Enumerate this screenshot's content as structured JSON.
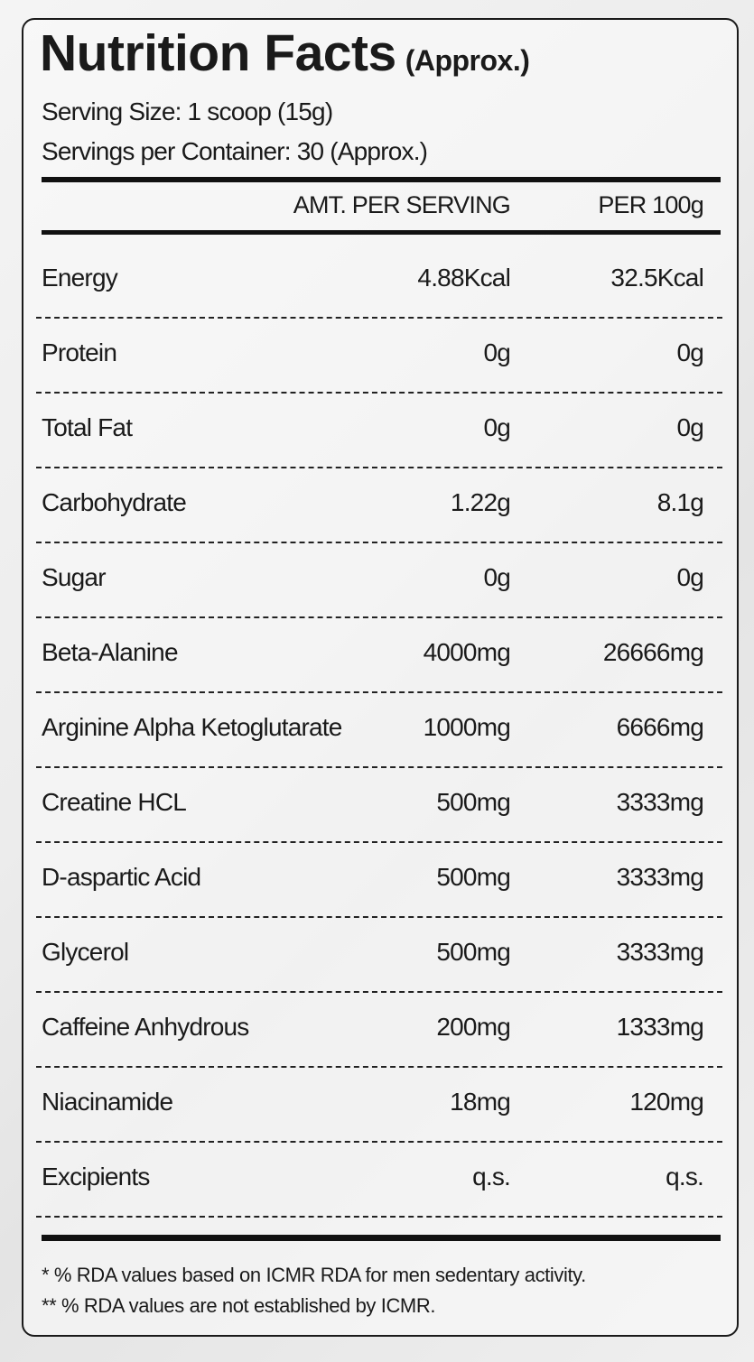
{
  "title": "Nutrition Facts",
  "title_suffix": "(Approx.)",
  "serving_size": "Serving Size: 1 scoop (15g)",
  "servings_per_container": "Servings per Container: 30 (Approx.)",
  "columns": {
    "per_serving": "AMT. PER SERVING",
    "per_100g": "PER 100g"
  },
  "rows": [
    {
      "name": "Energy",
      "per_serving": "4.88Kcal",
      "per_100g": "32.5Kcal"
    },
    {
      "name": "Protein",
      "per_serving": "0g",
      "per_100g": "0g"
    },
    {
      "name": "Total Fat",
      "per_serving": "0g",
      "per_100g": "0g"
    },
    {
      "name": "Carbohydrate",
      "per_serving": "1.22g",
      "per_100g": "8.1g"
    },
    {
      "name": "Sugar",
      "per_serving": "0g",
      "per_100g": "0g"
    },
    {
      "name": "Beta-Alanine",
      "per_serving": "4000mg",
      "per_100g": "26666mg"
    },
    {
      "name": "Arginine Alpha Ketoglutarate",
      "per_serving": "1000mg",
      "per_100g": "6666mg"
    },
    {
      "name": "Creatine HCL",
      "per_serving": "500mg",
      "per_100g": "3333mg"
    },
    {
      "name": "D-aspartic Acid",
      "per_serving": "500mg",
      "per_100g": "3333mg"
    },
    {
      "name": "Glycerol",
      "per_serving": "500mg",
      "per_100g": "3333mg"
    },
    {
      "name": "Caffeine Anhydrous",
      "per_serving": "200mg",
      "per_100g": "1333mg"
    },
    {
      "name": "Niacinamide",
      "per_serving": "18mg",
      "per_100g": "120mg"
    },
    {
      "name": "Excipients",
      "per_serving": "q.s.",
      "per_100g": "q.s."
    }
  ],
  "footnotes": [
    "* % RDA values based on ICMR RDA for men sedentary activity.",
    "** % RDA values are not established by ICMR."
  ]
}
